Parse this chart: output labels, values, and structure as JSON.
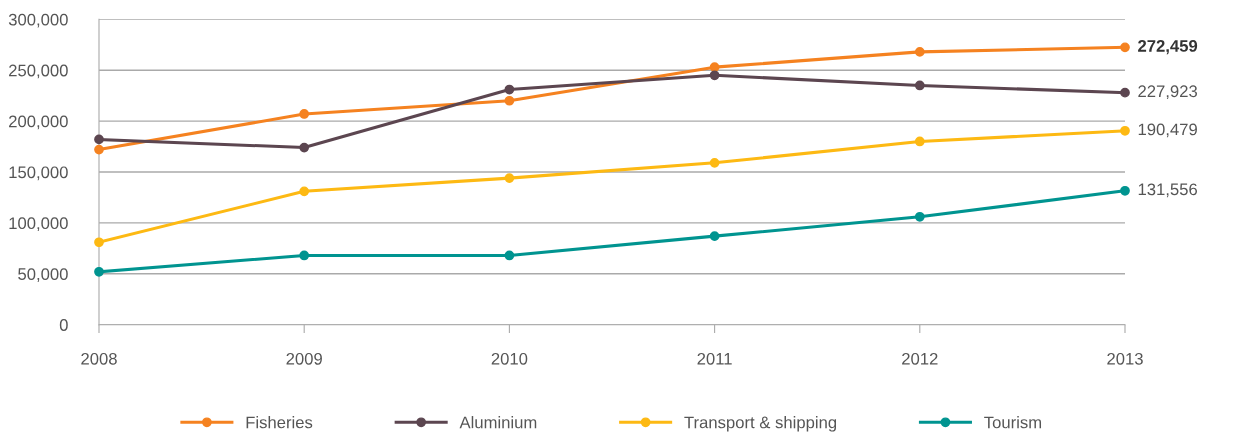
{
  "chart_data": {
    "type": "line",
    "categories": [
      "2008",
      "2009",
      "2010",
      "2011",
      "2012",
      "2013"
    ],
    "series": [
      {
        "name": "Fisheries",
        "color": "#f58220",
        "values": [
          172000,
          207000,
          220000,
          253000,
          268000,
          272459
        ],
        "value_labels": [
          null,
          null,
          null,
          null,
          null,
          "272,459"
        ]
      },
      {
        "name": "Aluminium",
        "color": "#5c4650",
        "values": [
          182000,
          174000,
          231000,
          245000,
          235000,
          227923
        ],
        "value_labels": [
          null,
          null,
          null,
          null,
          null,
          "227,923"
        ]
      },
      {
        "name": "Transport & shipping",
        "color": "#fdb913",
        "values": [
          81000,
          131000,
          144000,
          159000,
          180000,
          190479
        ],
        "value_labels": [
          null,
          null,
          null,
          null,
          null,
          "190,479"
        ]
      },
      {
        "name": "Tourism",
        "color": "#009490",
        "values": [
          52000,
          68000,
          68000,
          87000,
          106000,
          131556
        ],
        "value_labels": [
          null,
          null,
          null,
          null,
          null,
          "131,556"
        ]
      }
    ],
    "ylim": [
      0,
      300000
    ],
    "yticks": [
      0,
      {
        "value": 50000,
        "label": "50,000"
      },
      {
        "value": 100000,
        "label": "100,000"
      },
      {
        "value": 150000,
        "label": "150,000"
      },
      {
        "value": 200000,
        "label": "200,000"
      },
      {
        "value": 250000,
        "label": "250,000"
      },
      {
        "value": 300000,
        "label": "300,000"
      }
    ],
    "grid": "y",
    "legend": "bottom",
    "marker": "circle",
    "line_style": "solid"
  }
}
